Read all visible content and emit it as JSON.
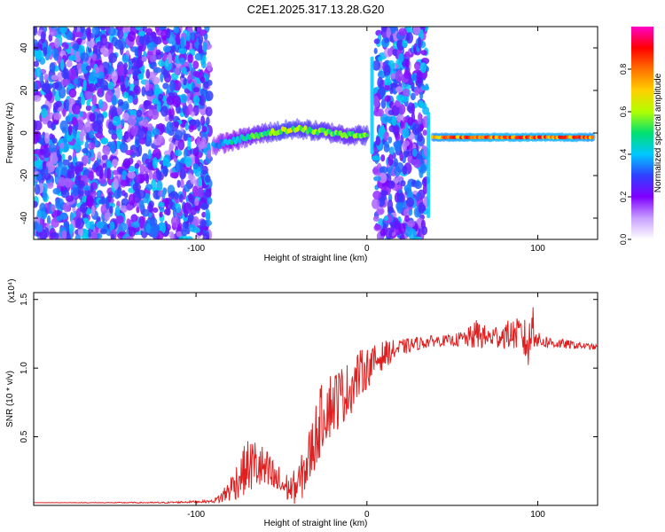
{
  "figure": {
    "title": "C2E1.2025.317.13.28.G20"
  },
  "chart_data": [
    {
      "type": "heatmap",
      "id": "spectrogram",
      "xlabel": "Height of straight line (km)",
      "ylabel": "Frequency (Hz)",
      "xlim": [
        -195,
        135
      ],
      "ylim": [
        -50,
        50
      ],
      "x_ticks": [
        -100,
        0,
        100
      ],
      "x_tick_labels": [
        "-100",
        "0",
        "100"
      ],
      "y_ticks": [
        -40,
        -20,
        0,
        20,
        40
      ],
      "y_tick_labels": [
        "-40",
        "-20",
        "0",
        "20",
        "40"
      ],
      "colorbar": {
        "label": "Normalized spectral amplitude",
        "range": [
          0.0,
          1.0
        ],
        "ticks": [
          0.0,
          0.2,
          0.4,
          0.6,
          0.8
        ],
        "tick_labels": [
          "0.0",
          "0.2",
          "0.4",
          "0.6",
          "0.8"
        ],
        "colormap": [
          "#ffffff",
          "#c8a0ff",
          "#8000ff",
          "#3040ff",
          "#00c8ff",
          "#00e070",
          "#b0ff00",
          "#ffd000",
          "#ff7000",
          "#ff0000",
          "#ff00c8"
        ]
      },
      "noise_regions": [
        {
          "x_range": [
            -195,
            -92
          ],
          "level": 0.35
        },
        {
          "x_range": [
            5,
            35
          ],
          "level": 0.35
        }
      ],
      "signal_track": [
        {
          "x": -90,
          "f": -6,
          "amp": 0.35
        },
        {
          "x": -80,
          "f": -4,
          "amp": 0.45
        },
        {
          "x": -70,
          "f": -2,
          "amp": 0.5
        },
        {
          "x": -60,
          "f": 0,
          "amp": 0.55
        },
        {
          "x": -50,
          "f": 1,
          "amp": 0.65
        },
        {
          "x": -40,
          "f": 2,
          "amp": 0.6
        },
        {
          "x": -30,
          "f": 1,
          "amp": 0.6
        },
        {
          "x": -20,
          "f": 0,
          "amp": 0.55
        },
        {
          "x": -10,
          "f": -1,
          "amp": 0.55
        },
        {
          "x": 0,
          "f": -1,
          "amp": 0.6
        },
        {
          "x": 40,
          "f": -2,
          "amp": 0.8
        },
        {
          "x": 60,
          "f": -2,
          "amp": 0.85
        },
        {
          "x": 80,
          "f": -2,
          "amp": 0.85
        },
        {
          "x": 100,
          "f": -2,
          "amp": 0.85
        },
        {
          "x": 120,
          "f": -2,
          "amp": 0.85
        },
        {
          "x": 133,
          "f": -2,
          "amp": 0.8
        }
      ],
      "vertical_streaks": [
        {
          "x": 3,
          "f_range": [
            -10,
            36
          ]
        },
        {
          "x": 36,
          "f_range": [
            -40,
            10
          ]
        },
        {
          "x": -104,
          "f_range": [
            -8,
            -2
          ]
        }
      ]
    },
    {
      "type": "line",
      "id": "snr",
      "xlabel": "Height of straight line (km)",
      "ylabel": "SNR (10 * v/v)",
      "y_multiplier_label": "(x10⁴)",
      "xlim": [
        -195,
        135
      ],
      "ylim": [
        0,
        1.55
      ],
      "x_ticks": [
        -100,
        0,
        100
      ],
      "x_tick_labels": [
        "-100",
        "0",
        "100"
      ],
      "y_ticks": [
        0.5,
        1.0,
        1.5
      ],
      "y_tick_labels": [
        "0.5",
        "1.0",
        "1.5"
      ],
      "color": "#e02020",
      "series": [
        {
          "name": "SNR",
          "x": [
            -195,
            -120,
            -90,
            -85,
            -80,
            -75,
            -70,
            -65,
            -60,
            -55,
            -50,
            -45,
            -40,
            -35,
            -30,
            -25,
            -20,
            -15,
            -10,
            -5,
            0,
            5,
            10,
            20,
            30,
            40,
            50,
            60,
            65,
            70,
            80,
            90,
            95,
            97,
            100,
            110,
            120,
            135
          ],
          "y": [
            0.02,
            0.02,
            0.03,
            0.06,
            0.12,
            0.2,
            0.28,
            0.3,
            0.25,
            0.2,
            0.15,
            0.12,
            0.15,
            0.3,
            0.5,
            0.7,
            0.75,
            0.8,
            0.85,
            0.95,
            1.0,
            1.05,
            1.1,
            1.15,
            1.18,
            1.2,
            1.2,
            1.22,
            1.25,
            1.22,
            1.24,
            1.25,
            1.15,
            1.35,
            1.2,
            1.18,
            1.17,
            1.15
          ],
          "noise": [
            0.0,
            0.005,
            0.01,
            0.05,
            0.1,
            0.15,
            0.2,
            0.2,
            0.18,
            0.15,
            0.12,
            0.1,
            0.15,
            0.2,
            0.25,
            0.25,
            0.25,
            0.22,
            0.2,
            0.18,
            0.15,
            0.12,
            0.1,
            0.06,
            0.05,
            0.04,
            0.04,
            0.08,
            0.12,
            0.08,
            0.1,
            0.12,
            0.2,
            0.2,
            0.06,
            0.04,
            0.03,
            0.02
          ]
        }
      ]
    }
  ]
}
